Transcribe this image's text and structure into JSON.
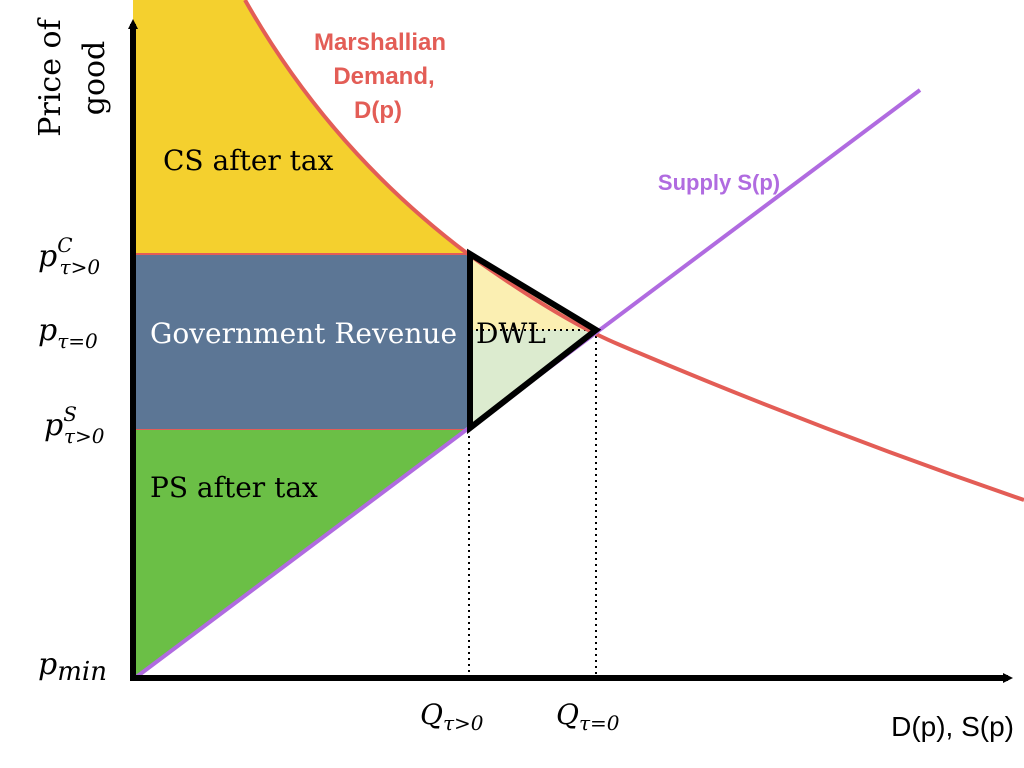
{
  "axes": {
    "y_label_line1": "Price of",
    "y_label_line2": "good",
    "x_label": "D(p), S(p)"
  },
  "curves": {
    "demand_line1": "Marshallian",
    "demand_line2": "Demand,",
    "demand_line3": "D(p)",
    "supply": "Supply S(p)"
  },
  "regions": {
    "cs": "CS after tax",
    "revenue": "Government Revenue",
    "dwl": "DWL",
    "ps": "PS after tax"
  },
  "price_ticks": {
    "pc": {
      "base": "p",
      "sup": "C",
      "sub": "τ>0"
    },
    "p0": {
      "base": "p",
      "sub": "τ=0"
    },
    "ps": {
      "base": "p",
      "sup": "S",
      "sub": "τ>0"
    },
    "pmin": {
      "base": "p",
      "sub": "min"
    }
  },
  "quantity_ticks": {
    "q_tax": {
      "base": "Q",
      "sub": "τ>0"
    },
    "q_notax": {
      "base": "Q",
      "sub": "τ=0"
    }
  },
  "colors": {
    "cs": "#f4d02e",
    "revenue": "#5c7695",
    "ps": "#6bbf46",
    "dwl_upper": "#fbefb2",
    "dwl_lower": "#dcebcf",
    "demand": "#e35d56",
    "supply": "#b06be0",
    "axis": "#000000"
  }
}
